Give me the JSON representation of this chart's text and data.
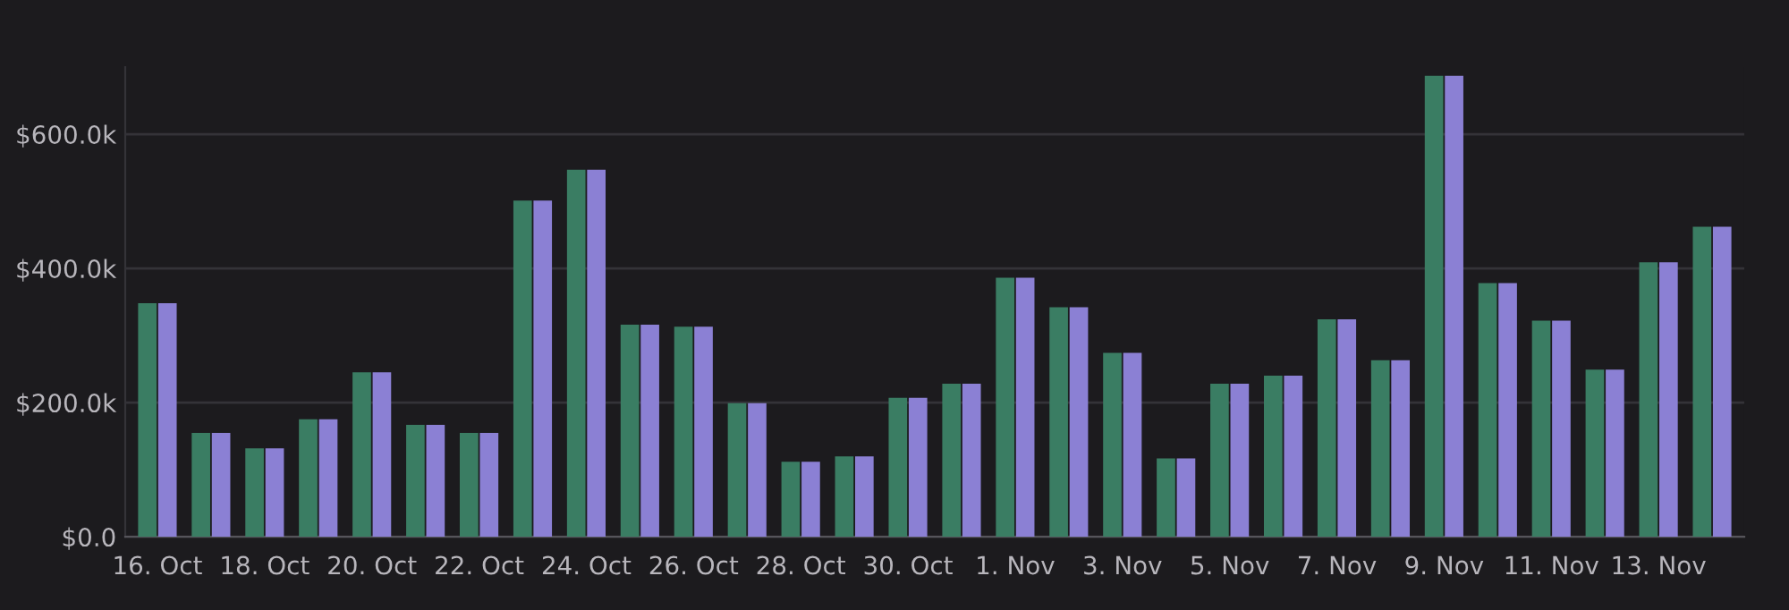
{
  "chart_data": {
    "type": "bar",
    "categories": [
      "16. Oct",
      null,
      "18. Oct",
      null,
      "20. Oct",
      null,
      "22. Oct",
      null,
      "24. Oct",
      null,
      "26. Oct",
      null,
      "28. Oct",
      null,
      "30. Oct",
      null,
      "1. Nov",
      null,
      "3. Nov",
      null,
      "5. Nov",
      null,
      "7. Nov",
      null,
      "9. Nov",
      null,
      "11. Nov",
      null,
      "13. Nov",
      null
    ],
    "series": [
      {
        "color": "#3a7d63",
        "values": [
          348,
          155,
          132,
          175,
          245,
          167,
          155,
          501,
          547,
          316,
          313,
          199,
          112,
          120,
          207,
          228,
          386,
          342,
          274,
          117,
          228,
          240,
          324,
          263,
          687,
          378,
          322,
          249,
          409,
          462
        ]
      },
      {
        "color": "#8b80d4",
        "values": [
          348,
          155,
          132,
          175,
          245,
          167,
          155,
          501,
          547,
          316,
          313,
          199,
          112,
          120,
          207,
          228,
          386,
          342,
          274,
          117,
          228,
          240,
          324,
          263,
          687,
          378,
          322,
          249,
          409,
          462
        ]
      }
    ],
    "ylim": [
      0,
      700
    ],
    "yticks": [
      {
        "value": 0,
        "label": "$0.0"
      },
      {
        "value": 200,
        "label": "$200.0k"
      },
      {
        "value": 400,
        "label": "$400.0k"
      },
      {
        "value": 600,
        "label": "$600.0k"
      }
    ],
    "grid": "y"
  }
}
